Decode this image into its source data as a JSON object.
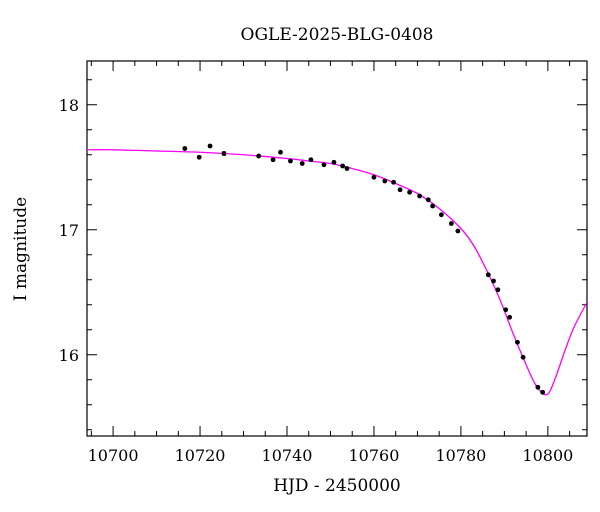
{
  "chart_data": {
    "type": "scatter",
    "title": "OGLE-2025-BLG-0408",
    "xlabel": "HJD - 2450000",
    "ylabel": "I magnitude",
    "xlim": [
      10694,
      10809
    ],
    "ylim": [
      18.35,
      15.35
    ],
    "y_inverted": true,
    "xticks": [
      10700,
      10720,
      10740,
      10760,
      10780,
      10800
    ],
    "xtick_labels": [
      "10700",
      "10720",
      "10740",
      "10760",
      "10780",
      "10800"
    ],
    "yticks": [
      16,
      17,
      18
    ],
    "ytick_labels": [
      "16",
      "17",
      "18"
    ],
    "grid": false,
    "colors": {
      "model": "#ff00ff",
      "points": "#000000"
    },
    "series": [
      {
        "type": "scatter",
        "x": [
          10716.5,
          10719.8,
          10722.3,
          10725.5,
          10733.5,
          10736.8,
          10738.5,
          10740.8,
          10743.5,
          10745.5,
          10748.5,
          10750.8,
          10752.8,
          10753.8,
          10760.0,
          10762.5,
          10764.5,
          10766.0,
          10768.2,
          10770.5,
          10772.5,
          10773.5,
          10775.5,
          10777.8,
          10779.3,
          10786.3,
          10787.5,
          10788.5,
          10790.3,
          10791.2,
          10793.0,
          10794.3,
          10797.7,
          10798.8
        ],
        "y": [
          17.65,
          17.58,
          17.67,
          17.61,
          17.59,
          17.56,
          17.62,
          17.55,
          17.53,
          17.56,
          17.52,
          17.54,
          17.51,
          17.49,
          17.42,
          17.39,
          17.38,
          17.32,
          17.3,
          17.27,
          17.24,
          17.19,
          17.12,
          17.05,
          16.99,
          16.64,
          16.59,
          16.52,
          16.36,
          16.3,
          16.1,
          15.98,
          15.74,
          15.7
        ],
        "yerr": [
          0.015,
          0.015,
          0.02,
          0.025,
          0.012,
          0.012,
          0.012,
          0.012,
          0.012,
          0.012,
          0.012,
          0.012,
          0.012,
          0.012,
          0.01,
          0.01,
          0.01,
          0.01,
          0.01,
          0.01,
          0.01,
          0.01,
          0.01,
          0.01,
          0.01,
          0.01,
          0.01,
          0.01,
          0.01,
          0.01,
          0.01,
          0.01,
          0.01,
          0.01
        ]
      },
      {
        "type": "line",
        "x": [
          10694,
          10700,
          10710,
          10720,
          10730,
          10740,
          10745,
          10750,
          10755,
          10760,
          10765,
          10770,
          10775,
          10780,
          10783,
          10786,
          10789,
          10792,
          10795,
          10797,
          10798.5,
          10799.5,
          10800.5,
          10802,
          10804,
          10806,
          10809
        ],
        "y": [
          17.64,
          17.64,
          17.63,
          17.62,
          17.6,
          17.57,
          17.55,
          17.53,
          17.49,
          17.44,
          17.37,
          17.29,
          17.17,
          17.01,
          16.87,
          16.67,
          16.44,
          16.17,
          15.92,
          15.77,
          15.7,
          15.68,
          15.71,
          15.84,
          16.04,
          16.22,
          16.42
        ]
      }
    ]
  }
}
